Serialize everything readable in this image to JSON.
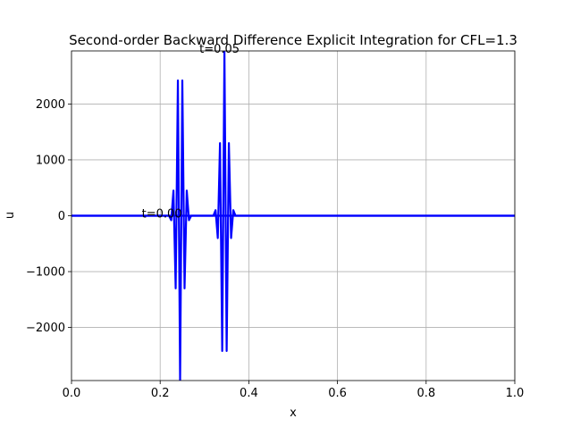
{
  "chart_data": {
    "type": "line",
    "title": "Second-order Backward Difference Explicit Integration for  CFL=1.3",
    "xlabel": "x",
    "ylabel": "u",
    "xlim": [
      0,
      1
    ],
    "ylim": [
      -2950,
      2950
    ],
    "grid": true,
    "x_ticks": [
      0,
      0.2,
      0.4,
      0.6,
      0.8,
      1.0
    ],
    "x_tick_labels": [
      "0.0",
      "0.2",
      "0.4",
      "0.6",
      "0.8",
      "1.0"
    ],
    "y_ticks": [
      -2000,
      -1000,
      0,
      1000,
      2000
    ],
    "y_tick_labels": [
      "−2000",
      "−1000",
      "0",
      "1000",
      "2000"
    ],
    "line_color": "#0000ff",
    "series": [
      {
        "x": [
          0,
          0.22,
          0.225,
          0.23,
          0.235,
          0.24,
          0.245,
          0.25,
          0.255,
          0.26,
          0.265,
          0.27,
          1.0
        ],
        "values": [
          0,
          0,
          -80,
          450,
          -1300,
          2420,
          -2950,
          2420,
          -1300,
          450,
          -80,
          0,
          0
        ]
      },
      {
        "x": [
          0,
          0.32,
          0.325,
          0.33,
          0.335,
          0.34,
          0.345,
          0.35,
          0.355,
          0.36,
          0.365,
          0.37,
          1.0
        ],
        "values": [
          0,
          0,
          100,
          -400,
          1300,
          -2420,
          2950,
          -2420,
          1300,
          -400,
          100,
          0,
          0
        ]
      }
    ],
    "annotations": [
      {
        "text": "t=0.00",
        "x": 0.215,
        "y": 0
      },
      {
        "text": "t=0.05",
        "x": 0.345,
        "y": 2950
      }
    ]
  }
}
